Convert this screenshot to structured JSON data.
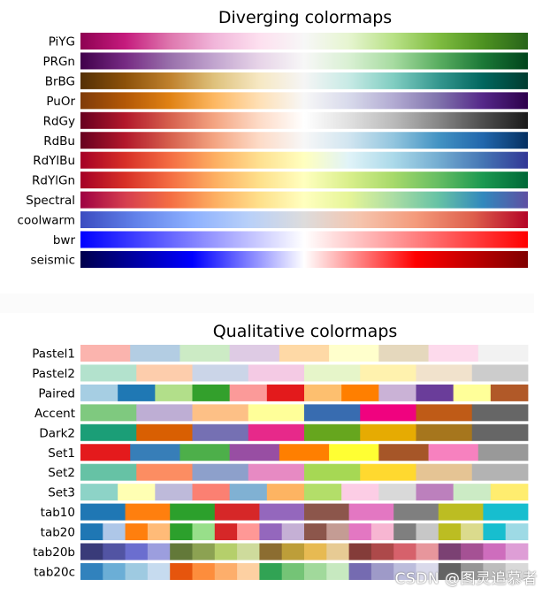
{
  "chart_data": [
    {
      "type": "heatmap",
      "title": "Diverging colormaps",
      "rows": [
        {
          "name": "PiYG",
          "colors": [
            "#8e0152",
            "#c51b7d",
            "#de77ae",
            "#f1b6da",
            "#fde0ef",
            "#f7f7f7",
            "#e6f5d0",
            "#b8e186",
            "#7fbc41",
            "#4d9221",
            "#276419"
          ]
        },
        {
          "name": "PRGn",
          "colors": [
            "#40004b",
            "#762a83",
            "#9970ab",
            "#c2a5cf",
            "#e7d4e8",
            "#f7f7f7",
            "#d9f0d3",
            "#a6dba0",
            "#5aae61",
            "#1b7837",
            "#00441b"
          ]
        },
        {
          "name": "BrBG",
          "colors": [
            "#543005",
            "#8c510a",
            "#bf812d",
            "#dfc27d",
            "#f6e8c3",
            "#f5f5f5",
            "#c7eae5",
            "#80cdc1",
            "#35978f",
            "#01665e",
            "#003c30"
          ]
        },
        {
          "name": "PuOr",
          "colors": [
            "#7f3b08",
            "#b35806",
            "#e08214",
            "#fdb863",
            "#fee0b6",
            "#f7f7f7",
            "#d8daeb",
            "#b2abd2",
            "#8073ac",
            "#542788",
            "#2d004b"
          ]
        },
        {
          "name": "RdGy",
          "colors": [
            "#67001f",
            "#b2182b",
            "#d6604d",
            "#f4a582",
            "#fddbc7",
            "#ffffff",
            "#e0e0e0",
            "#bababa",
            "#878787",
            "#4d4d4d",
            "#1a1a1a"
          ]
        },
        {
          "name": "RdBu",
          "colors": [
            "#67001f",
            "#b2182b",
            "#d6604d",
            "#f4a582",
            "#fddbc7",
            "#f7f7f7",
            "#d1e5f0",
            "#92c5de",
            "#4393c3",
            "#2166ac",
            "#053061"
          ]
        },
        {
          "name": "RdYlBu",
          "colors": [
            "#a50026",
            "#d73027",
            "#f46d43",
            "#fdae61",
            "#fee090",
            "#ffffbf",
            "#e0f3f8",
            "#abd9e9",
            "#74add1",
            "#4575b4",
            "#313695"
          ]
        },
        {
          "name": "RdYlGn",
          "colors": [
            "#a50026",
            "#d73027",
            "#f46d43",
            "#fdae61",
            "#fee08b",
            "#ffffbf",
            "#d9ef8b",
            "#a6d96a",
            "#66bd63",
            "#1a9850",
            "#006837"
          ]
        },
        {
          "name": "Spectral",
          "colors": [
            "#9e0142",
            "#d53e4f",
            "#f46d43",
            "#fdae61",
            "#fee08b",
            "#ffffbf",
            "#e6f598",
            "#abdda4",
            "#66c2a5",
            "#3288bd",
            "#5e4fa2"
          ]
        },
        {
          "name": "coolwarm",
          "colors": [
            "#3b4cc0",
            "#6282ea",
            "#8db0fe",
            "#b8d0f9",
            "#dddcdc",
            "#f5c4ad",
            "#f49a7b",
            "#de604d",
            "#b40426"
          ]
        },
        {
          "name": "bwr",
          "colors": [
            "#0000ff",
            "#ffffff",
            "#ff0000"
          ]
        },
        {
          "name": "seismic",
          "colors": [
            "#00004c",
            "#0000ff",
            "#ffffff",
            "#ff0000",
            "#800000"
          ]
        }
      ]
    },
    {
      "type": "heatmap",
      "title": "Qualitative colormaps",
      "rows": [
        {
          "name": "Pastel1",
          "colors": [
            "#fbb4ae",
            "#b3cde3",
            "#ccebc5",
            "#decbe4",
            "#fed9a6",
            "#ffffcc",
            "#e5d8bd",
            "#fddaec",
            "#f2f2f2"
          ]
        },
        {
          "name": "Pastel2",
          "colors": [
            "#b3e2cd",
            "#fdcdac",
            "#cbd5e8",
            "#f4cae4",
            "#e6f5c9",
            "#fff2ae",
            "#f1e2cc",
            "#cccccc"
          ]
        },
        {
          "name": "Paired",
          "colors": [
            "#a6cee3",
            "#1f78b4",
            "#b2df8a",
            "#33a02c",
            "#fb9a99",
            "#e31a1c",
            "#fdbf6f",
            "#ff7f00",
            "#cab2d6",
            "#6a3d9a",
            "#ffff99",
            "#b15928"
          ]
        },
        {
          "name": "Accent",
          "colors": [
            "#7fc97f",
            "#beaed4",
            "#fdc086",
            "#ffff99",
            "#386cb0",
            "#f0027f",
            "#bf5b17",
            "#666666"
          ]
        },
        {
          "name": "Dark2",
          "colors": [
            "#1b9e77",
            "#d95f02",
            "#7570b3",
            "#e7298a",
            "#66a61e",
            "#e6ab02",
            "#a6761d",
            "#666666"
          ]
        },
        {
          "name": "Set1",
          "colors": [
            "#e41a1c",
            "#377eb8",
            "#4daf4a",
            "#984ea3",
            "#ff7f00",
            "#ffff33",
            "#a65628",
            "#f781bf",
            "#999999"
          ]
        },
        {
          "name": "Set2",
          "colors": [
            "#66c2a5",
            "#fc8d62",
            "#8da0cb",
            "#e78ac3",
            "#a6d854",
            "#ffd92f",
            "#e5c494",
            "#b3b3b3"
          ]
        },
        {
          "name": "Set3",
          "colors": [
            "#8dd3c7",
            "#ffffb3",
            "#bebada",
            "#fb8072",
            "#80b1d3",
            "#fdb462",
            "#b3de69",
            "#fccde5",
            "#d9d9d9",
            "#bc80bd",
            "#ccebc5",
            "#ffed6f"
          ]
        },
        {
          "name": "tab10",
          "colors": [
            "#1f77b4",
            "#ff7f0e",
            "#2ca02c",
            "#d62728",
            "#9467bd",
            "#8c564b",
            "#e377c2",
            "#7f7f7f",
            "#bcbd22",
            "#17becf"
          ]
        },
        {
          "name": "tab20",
          "colors": [
            "#1f77b4",
            "#aec7e8",
            "#ff7f0e",
            "#ffbb78",
            "#2ca02c",
            "#98df8a",
            "#d62728",
            "#ff9896",
            "#9467bd",
            "#c5b0d5",
            "#8c564b",
            "#c49c94",
            "#e377c2",
            "#f7b6d2",
            "#7f7f7f",
            "#c7c7c7",
            "#bcbd22",
            "#dbdb8d",
            "#17becf",
            "#9edae5"
          ]
        },
        {
          "name": "tab20b",
          "colors": [
            "#393b79",
            "#5254a3",
            "#6b6ecf",
            "#9c9ede",
            "#637939",
            "#8ca252",
            "#b5cf6b",
            "#cedb9c",
            "#8c6d31",
            "#bd9e39",
            "#e7ba52",
            "#e7cb94",
            "#843c39",
            "#ad494a",
            "#d6616b",
            "#e7969c",
            "#7b4173",
            "#a55194",
            "#ce6dbd",
            "#de9ed6"
          ]
        },
        {
          "name": "tab20c",
          "colors": [
            "#3182bd",
            "#6baed6",
            "#9ecae1",
            "#c6dbef",
            "#e6550d",
            "#fd8d3c",
            "#fdae6b",
            "#fdd0a2",
            "#31a354",
            "#74c476",
            "#a1d99b",
            "#c7e9c0",
            "#756bb1",
            "#9e9ac8",
            "#bcbddc",
            "#dadaeb",
            "#636363",
            "#969696",
            "#bdbdbd",
            "#d9d9d9"
          ]
        }
      ]
    }
  ],
  "watermark": "CSDN @图灵追慕者"
}
